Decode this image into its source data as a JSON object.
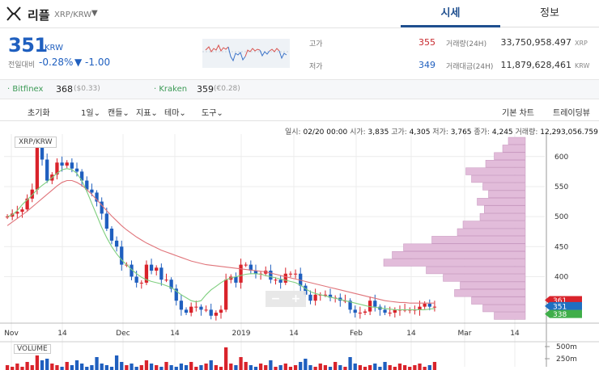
{
  "header": {
    "coin_name": "리플",
    "pair": "XRP/KRW",
    "tabs": [
      {
        "label": "시세",
        "active": true
      },
      {
        "label": "정보",
        "active": false
      }
    ]
  },
  "price_panel": {
    "price": "351",
    "unit": "KRW",
    "change_label": "전일대비",
    "change_pct": "-0.28%",
    "change_abs": "▼ -1.00",
    "stats": {
      "high_label": "고가",
      "high": "355",
      "low_label": "저가",
      "low": "349",
      "volume_label": "거래량(24H)",
      "volume": "33,750,958.497",
      "volume_unit": "XRP",
      "value_label": "거래대금(24H)",
      "value": "11,879,628,461",
      "value_unit": "KRW"
    }
  },
  "exchanges": [
    {
      "name": "· Bitfinex",
      "price": "368",
      "diff": "($0.33)"
    },
    {
      "name": "· Kraken",
      "price": "359",
      "diff": "(€0.28)"
    }
  ],
  "toolbar": {
    "reset": "초기화",
    "interval": "1일",
    "candle": "캔들",
    "indicator": "지표",
    "theme": "테마",
    "tools": "도구",
    "basic_chart": "기본 차트",
    "tradingview": "트레이딩뷰",
    "chevron": "⌄"
  },
  "legend": {
    "time_label": "일시:",
    "time": "02/20 00:00",
    "open_label": "시가:",
    "open": "3,835",
    "high_label": "고가:",
    "high": "4,305",
    "low_label": "저가:",
    "low": "3,765",
    "close_label": "종가:",
    "close": "4,245",
    "vol_label": "거래량:",
    "vol": "12,293,056.759"
  },
  "chart": {
    "pair_label": "XRP/KRW",
    "volume_label": "VOLUME",
    "zoom_out": "−",
    "zoom_in": "+"
  },
  "chart_data": {
    "type": "candlestick",
    "x_tick_labels": [
      "Nov",
      "14",
      "Dec",
      "14",
      "2019",
      "14",
      "Feb",
      "14",
      "Mar",
      "14"
    ],
    "y_tick_labels": [
      600,
      550,
      500,
      450,
      400
    ],
    "volume_tick_labels": [
      "500m",
      "250m"
    ],
    "price_markers": [
      {
        "value": 361,
        "color": "#d9232b"
      },
      {
        "value": 351,
        "color": "#1f6fc1"
      },
      {
        "value": 338,
        "color": "#3fae49"
      }
    ],
    "ylim": [
      328,
      632
    ],
    "closes": [
      500,
      505,
      508,
      512,
      530,
      545,
      615,
      595,
      560,
      570,
      590,
      585,
      590,
      580,
      575,
      560,
      545,
      540,
      525,
      505,
      480,
      460,
      450,
      420,
      420,
      400,
      390,
      390,
      420,
      410,
      415,
      395,
      395,
      380,
      360,
      345,
      340,
      350,
      350,
      345,
      345,
      335,
      340,
      345,
      395,
      400,
      390,
      420,
      420,
      410,
      405,
      405,
      410,
      395,
      395,
      390,
      405,
      405,
      405,
      385,
      370,
      360,
      370,
      370,
      370,
      365,
      365,
      360,
      360,
      345,
      340,
      340,
      342,
      360,
      350,
      345,
      340,
      340,
      345,
      345,
      345,
      345,
      345,
      350,
      355,
      350,
      350
    ],
    "ma_fast": [
      500,
      503,
      510,
      520,
      528,
      536,
      545,
      552,
      558,
      565,
      572,
      578,
      580,
      578,
      572,
      560,
      542,
      522,
      502,
      482,
      465,
      450,
      438,
      428,
      420,
      412,
      405,
      399,
      395,
      392,
      390,
      388,
      385,
      382,
      376,
      370,
      365,
      360,
      358,
      360,
      370,
      378,
      384,
      390,
      395,
      398,
      400,
      402,
      404,
      405,
      405,
      404,
      402,
      400,
      398,
      396,
      394,
      392,
      390,
      386,
      380,
      375,
      372,
      370,
      368,
      366,
      364,
      362,
      360,
      358,
      356,
      354,
      352,
      350,
      349,
      348,
      347,
      346,
      345,
      345,
      345,
      345,
      345,
      345,
      345,
      346,
      347
    ],
    "ma_slow": [
      485,
      491,
      497,
      503,
      509,
      516,
      523,
      530,
      537,
      544,
      551,
      557,
      560,
      560,
      557,
      552,
      545,
      537,
      528,
      519,
      510,
      501,
      493,
      485,
      478,
      472,
      466,
      461,
      456,
      452,
      448,
      444,
      441,
      438,
      435,
      432,
      429,
      426,
      424,
      422,
      420,
      419,
      418,
      417,
      416,
      415,
      414,
      413,
      412,
      411,
      410,
      409,
      408,
      406,
      404,
      402,
      400,
      398,
      396,
      394,
      392,
      390,
      388,
      386,
      384,
      382,
      380,
      378,
      376,
      374,
      372,
      370,
      368,
      366,
      364,
      362,
      360,
      359,
      358,
      357,
      357,
      356,
      356,
      356,
      356,
      356,
      356
    ]
  }
}
